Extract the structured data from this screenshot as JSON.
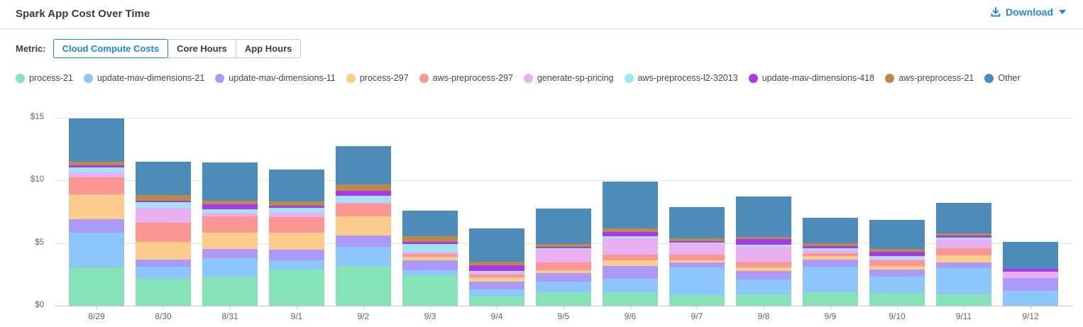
{
  "header": {
    "title": "Spark App Cost Over Time",
    "download": {
      "label": "Download",
      "icon": "download-icon"
    }
  },
  "metric": {
    "label": "Metric:",
    "options": [
      {
        "label": "Cloud Compute Costs",
        "selected": true
      },
      {
        "label": "Core Hours",
        "selected": false
      },
      {
        "label": "App Hours",
        "selected": false
      }
    ]
  },
  "colors": {
    "accent_blue": "#1c86e8",
    "axis_text": "#666666",
    "gridline": "#e3e3e3"
  },
  "chart_data": {
    "type": "bar",
    "stacked": true,
    "title": "Spark App Cost Over Time",
    "xlabel": "",
    "ylabel": "",
    "ylim": [
      0,
      15
    ],
    "y_ticks": [
      0,
      5,
      10,
      15
    ],
    "y_tick_labels": [
      "$0",
      "$5",
      "$10",
      "$15"
    ],
    "grid": true,
    "legend_position": "top",
    "categories": [
      "8/29",
      "8/30",
      "8/31",
      "9/1",
      "9/2",
      "9/3",
      "9/4",
      "9/5",
      "9/6",
      "9/7",
      "9/8",
      "9/9",
      "9/10",
      "9/11",
      "9/12"
    ],
    "series": [
      {
        "name": "process-21",
        "color": "#86e2b7",
        "values": [
          3.05,
          2.15,
          2.3,
          2.9,
          3.15,
          2.45,
          0.8,
          1.1,
          1.1,
          0.85,
          0.9,
          1.05,
          1.0,
          0.9,
          0
        ]
      },
      {
        "name": "update-mav-dimensions-21",
        "color": "#8cc6fb",
        "values": [
          2.8,
          0.95,
          1.5,
          0.75,
          1.55,
          0.4,
          0.5,
          0.85,
          1.05,
          2.2,
          1.2,
          2.05,
          1.3,
          2.1,
          1.2
        ]
      },
      {
        "name": "update-mav-dimensions-11",
        "color": "#ab9af8",
        "values": [
          1.05,
          0.6,
          0.75,
          0.8,
          0.9,
          0.8,
          0.6,
          0.65,
          1.0,
          0.4,
          0.65,
          0.6,
          0.6,
          0.45,
          1.0
        ]
      },
      {
        "name": "process-297",
        "color": "#fbcc8b",
        "values": [
          2.0,
          1.4,
          1.3,
          1.4,
          1.55,
          0.25,
          0.35,
          0.25,
          0.5,
          0.2,
          0.3,
          0.25,
          0.3,
          0.55,
          0
        ]
      },
      {
        "name": "aws-preprocess-297",
        "color": "#fb9793",
        "values": [
          1.35,
          1.55,
          1.3,
          1.25,
          1.0,
          0.25,
          0.25,
          0.6,
          0.45,
          0.45,
          0.45,
          0.25,
          0.4,
          0.6,
          0
        ]
      },
      {
        "name": "generate-sp-pricing",
        "color": "#e9aff0",
        "values": [
          0.4,
          1.15,
          0.25,
          0.3,
          0.1,
          0.15,
          0.15,
          1.0,
          1.3,
          0.8,
          1.2,
          0.2,
          0.15,
          0.65,
          0.5
        ]
      },
      {
        "name": "aws-preprocess-l2-32013",
        "color": "#9fe5f8",
        "values": [
          0.4,
          0.45,
          0.3,
          0.4,
          0.5,
          0.6,
          0.15,
          0.15,
          0.15,
          0.15,
          0.15,
          0.2,
          0.2,
          0.2,
          0
        ]
      },
      {
        "name": "update-mav-dimensions-418",
        "color": "#a937ee",
        "values": [
          0.15,
          0.15,
          0.4,
          0.2,
          0.45,
          0.2,
          0.45,
          0.1,
          0.35,
          0.1,
          0.45,
          0.15,
          0.35,
          0.15,
          0.25
        ]
      },
      {
        "name": "aws-preprocess-21",
        "color": "#bb8a47",
        "values": [
          0.3,
          0.45,
          0.3,
          0.35,
          0.5,
          0.45,
          0.25,
          0.25,
          0.25,
          0.25,
          0.2,
          0.25,
          0.25,
          0.2,
          0
        ]
      },
      {
        "name": "Other",
        "color": "#4d8cba",
        "values": [
          3.45,
          2.65,
          3.05,
          2.55,
          3.05,
          2.05,
          2.7,
          2.8,
          3.75,
          2.45,
          3.25,
          2.0,
          2.3,
          2.4,
          2.15
        ]
      }
    ]
  }
}
